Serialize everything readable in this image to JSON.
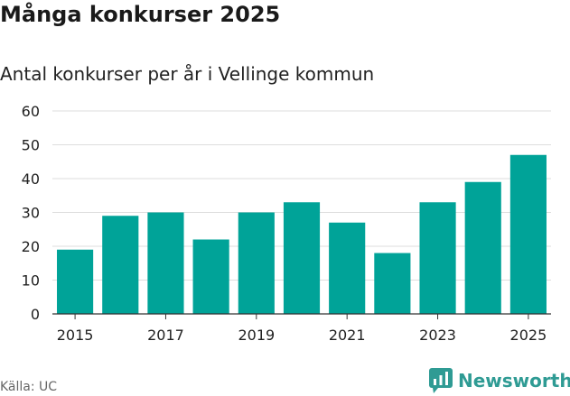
{
  "header": {
    "title": "Många konkurser 2025",
    "subtitle": "Antal konkurser per år i Vellinge kommun"
  },
  "footer": {
    "source": "Källa: UC",
    "brand": "Newsworthy",
    "brand_icon": "newsworthy-logo-icon"
  },
  "colors": {
    "bar": "#00a398",
    "grid": "#dddddd",
    "text": "#222222",
    "brand": "#2f9b94"
  },
  "chart_data": {
    "type": "bar",
    "title": "Många konkurser 2025",
    "subtitle": "Antal konkurser per år i Vellinge kommun",
    "xlabel": "",
    "ylabel": "",
    "categories": [
      "2015",
      "2016",
      "2017",
      "2018",
      "2019",
      "2020",
      "2021",
      "2022",
      "2023",
      "2024",
      "2025"
    ],
    "x_tick_labels": [
      "2015",
      "2017",
      "2019",
      "2021",
      "2023",
      "2025"
    ],
    "values": [
      19,
      29,
      30,
      22,
      30,
      33,
      27,
      18,
      33,
      39,
      47
    ],
    "ylim": [
      0,
      60
    ],
    "y_ticks": [
      0,
      10,
      20,
      30,
      40,
      50,
      60
    ],
    "grid": true,
    "legend": "none"
  }
}
